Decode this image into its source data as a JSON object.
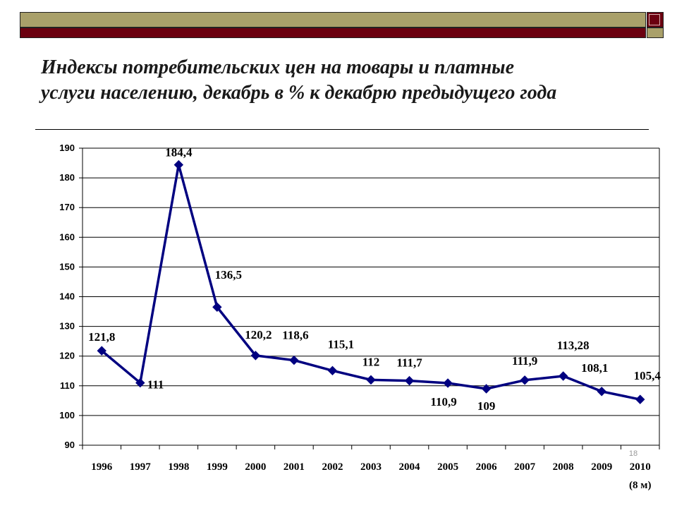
{
  "slide": {
    "title_line1": "Индексы потребительских цен на товары и платные",
    "title_line2": "услуги населению, декабрь в % к декабрю предыдущего года",
    "page_number": "18"
  },
  "colors": {
    "header_olive": "#a9a06a",
    "header_maroon": "#6b0010",
    "series_line": "#000080"
  },
  "chart_data": {
    "type": "line",
    "title": "",
    "xlabel": "",
    "ylabel": "",
    "categories": [
      "1996",
      "1997",
      "1998",
      "1999",
      "2000",
      "2001",
      "2002",
      "2003",
      "2004",
      "2005",
      "2006",
      "2007",
      "2008",
      "2009",
      "2010"
    ],
    "category_sublabels": [
      "",
      "",
      "",
      "",
      "",
      "",
      "",
      "",
      "",
      "",
      "",
      "",
      "",
      "",
      "(8 м)"
    ],
    "series": [
      {
        "values": [
          121.8,
          111,
          184.4,
          136.5,
          120.2,
          118.6,
          115.1,
          112,
          111.7,
          110.9,
          109,
          111.9,
          113.28,
          108.1,
          105.4
        ],
        "labels": [
          "121,8",
          "111",
          "184,4",
          "136,5",
          "120,2",
          "118,6",
          "115,1",
          "112",
          "111,7",
          "110,9",
          "109",
          "111,9",
          "113,28",
          "108,1",
          "105,4"
        ],
        "marker": "diamond"
      }
    ],
    "ylim": [
      90,
      190
    ],
    "yticks": [
      90,
      100,
      110,
      120,
      130,
      140,
      150,
      160,
      170,
      180,
      190
    ],
    "grid": true,
    "legend": "none"
  }
}
